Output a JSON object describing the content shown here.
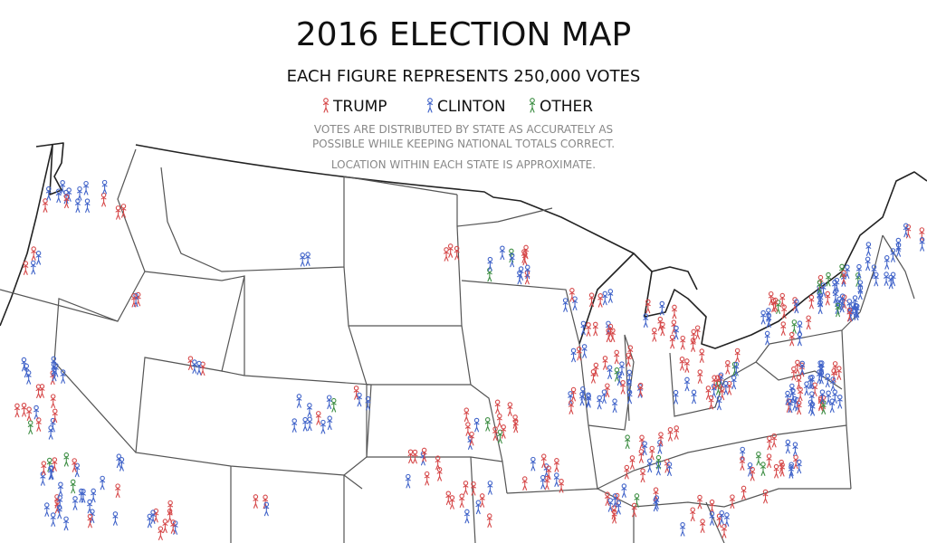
{
  "title": "2016 ELECTION MAP",
  "subtitle": "EACH FIGURE REPRESENTS 250,000 VOTES",
  "legend": [
    {
      "name": "TRUMP",
      "color": "#d6494a"
    },
    {
      "name": "CLINTON",
      "color": "#4063c9"
    },
    {
      "name": "OTHER",
      "color": "#3f8f45"
    }
  ],
  "notes": [
    "VOTES ARE DISTRIBUTED BY STATE AS ACCURATELY AS",
    "POSSIBLE WHILE KEEPING NATIONAL TOTALS CORRECT.",
    "LOCATION WITHIN EACH STATE IS APPROXIMATE."
  ]
}
